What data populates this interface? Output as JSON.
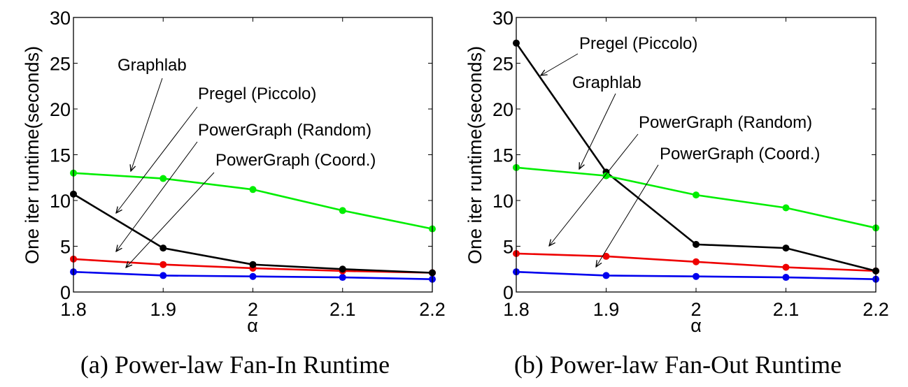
{
  "chart_data": [
    {
      "type": "line",
      "panel": "a",
      "caption": "(a) Power-law Fan-In Runtime",
      "title": "",
      "xlabel": "α",
      "ylabel": "One iter runtime(seconds)",
      "x": [
        1.8,
        1.9,
        2.0,
        2.1,
        2.2
      ],
      "xtick_labels": [
        "1.8",
        "1.9",
        "2",
        "2.1",
        "2.2"
      ],
      "ytick_labels": [
        "0",
        "5",
        "10",
        "15",
        "20",
        "25",
        "30"
      ],
      "xlim": [
        1.8,
        2.2
      ],
      "ylim": [
        0,
        30
      ],
      "grid": false,
      "series": [
        {
          "name": "Graphlab",
          "color": "#00ee00",
          "values": [
            13.0,
            12.4,
            11.2,
            8.9,
            6.9
          ]
        },
        {
          "name": "Pregel (Piccolo)",
          "color": "#000000",
          "values": [
            10.7,
            4.8,
            3.0,
            2.5,
            2.1
          ]
        },
        {
          "name": "PowerGraph (Random)",
          "color": "#ee0000",
          "values": [
            3.6,
            3.0,
            2.6,
            2.3,
            2.1
          ]
        },
        {
          "name": "PowerGraph (Coord.)",
          "color": "#0000ee",
          "values": [
            2.2,
            1.8,
            1.7,
            1.6,
            1.4
          ]
        }
      ],
      "annotations": [
        {
          "text": "Graphlab",
          "series": "Graphlab"
        },
        {
          "text": "Pregel (Piccolo)",
          "series": "Pregel (Piccolo)"
        },
        {
          "text": "PowerGraph (Random)",
          "series": "PowerGraph (Random)"
        },
        {
          "text": "PowerGraph (Coord.)",
          "series": "PowerGraph (Coord.)"
        }
      ]
    },
    {
      "type": "line",
      "panel": "b",
      "caption": "(b) Power-law Fan-Out Runtime",
      "title": "",
      "xlabel": "α",
      "ylabel": "One iter runtime(seconds)",
      "x": [
        1.8,
        1.9,
        2.0,
        2.1,
        2.2
      ],
      "xtick_labels": [
        "1.8",
        "1.9",
        "2",
        "2.1",
        "2.2"
      ],
      "ytick_labels": [
        "0",
        "5",
        "10",
        "15",
        "20",
        "25",
        "30"
      ],
      "xlim": [
        1.8,
        2.2
      ],
      "ylim": [
        0,
        30
      ],
      "grid": false,
      "series": [
        {
          "name": "Graphlab",
          "color": "#00ee00",
          "values": [
            13.6,
            12.7,
            10.6,
            9.2,
            7.0
          ]
        },
        {
          "name": "Pregel (Piccolo)",
          "color": "#000000",
          "values": [
            27.2,
            13.1,
            5.2,
            4.8,
            2.3
          ]
        },
        {
          "name": "PowerGraph (Random)",
          "color": "#ee0000",
          "values": [
            4.2,
            3.9,
            3.3,
            2.7,
            2.3
          ]
        },
        {
          "name": "PowerGraph (Coord.)",
          "color": "#0000ee",
          "values": [
            2.2,
            1.8,
            1.7,
            1.6,
            1.4
          ]
        }
      ],
      "annotations": [
        {
          "text": "Pregel (Piccolo)",
          "series": "Pregel (Piccolo)"
        },
        {
          "text": "Graphlab",
          "series": "Graphlab"
        },
        {
          "text": "PowerGraph (Random)",
          "series": "PowerGraph (Random)"
        },
        {
          "text": "PowerGraph (Coord.)",
          "series": "PowerGraph (Coord.)"
        }
      ]
    }
  ]
}
